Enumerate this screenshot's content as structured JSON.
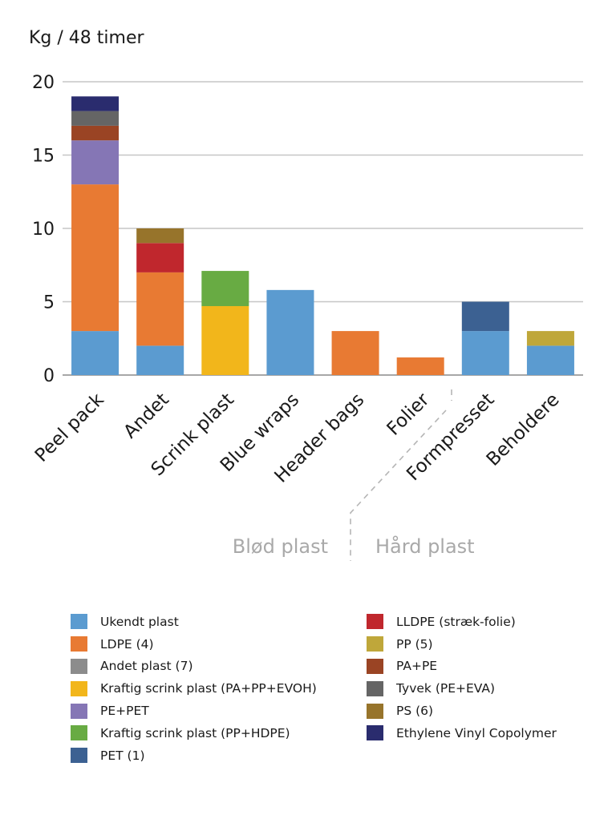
{
  "chart_data": {
    "type": "bar",
    "stacked": true,
    "ylabel": "Kg / 48 timer",
    "ylim": [
      0,
      20
    ],
    "yticks": [
      0,
      5,
      10,
      15,
      20
    ],
    "grid": true,
    "categories": [
      "Peel pack",
      "Andet",
      "Scrink plast",
      "Blue wraps",
      "Header bags",
      "Folier",
      "Formpresset",
      "Beholdere"
    ],
    "groups": [
      {
        "label": "Blød plast",
        "categories": [
          "Peel pack",
          "Andet",
          "Scrink plast",
          "Blue wraps",
          "Header bags",
          "Folier"
        ]
      },
      {
        "label": "Hård plast",
        "categories": [
          "Formpresset",
          "Beholdere"
        ]
      }
    ],
    "series": [
      {
        "name": "Ukendt plast",
        "color": "#5b9bd0",
        "values": [
          3,
          2,
          0,
          5.8,
          0,
          0,
          3,
          2
        ]
      },
      {
        "name": "LDPE (4)",
        "color": "#e87a33",
        "values": [
          10,
          5,
          0,
          0,
          3,
          1.2,
          0,
          0
        ]
      },
      {
        "name": "Andet plast (7)",
        "color": "#8c8c8c",
        "values": [
          0,
          0,
          0,
          0,
          0,
          0,
          0,
          0
        ]
      },
      {
        "name": "Kraftig scrink plast (PA+PP+EVOH)",
        "color": "#f2b61b",
        "values": [
          0,
          0,
          4.7,
          0,
          0,
          0,
          0,
          0
        ]
      },
      {
        "name": "PE+PET",
        "color": "#8576b5",
        "values": [
          3,
          0,
          0,
          0,
          0,
          0,
          0,
          0
        ]
      },
      {
        "name": "Kraftig scrink plast (PP+HDPE)",
        "color": "#68ab43",
        "values": [
          0,
          0,
          2.4,
          0,
          0,
          0,
          0,
          0
        ]
      },
      {
        "name": "PET (1)",
        "color": "#3c6192",
        "values": [
          0,
          0,
          0,
          0,
          0,
          0,
          2,
          0
        ]
      },
      {
        "name": "LLDPE (stræk-folie)",
        "color": "#c0272d",
        "values": [
          0,
          2,
          0,
          0,
          0,
          0,
          0,
          0
        ]
      },
      {
        "name": "PP (5)",
        "color": "#bfa73a",
        "values": [
          0,
          0,
          0,
          0,
          0,
          0,
          0,
          1
        ]
      },
      {
        "name": "PA+PE",
        "color": "#9a4424",
        "values": [
          1,
          0,
          0,
          0,
          0,
          0,
          0,
          0
        ]
      },
      {
        "name": "Tyvek (PE+EVA)",
        "color": "#656565",
        "values": [
          1,
          0,
          0,
          0,
          0,
          0,
          0,
          0
        ]
      },
      {
        "name": "PS (6)",
        "color": "#97742b",
        "values": [
          0,
          1,
          0,
          0,
          0,
          0,
          0,
          0
        ]
      },
      {
        "name": "Ethylene Vinyl Copolymer",
        "color": "#2a2c6e",
        "values": [
          1,
          0,
          0,
          0,
          0,
          0,
          0,
          0
        ]
      }
    ],
    "legend": {
      "placement": "bottom",
      "columns": [
        [
          "Ukendt plast",
          "LDPE (4)",
          "Andet plast (7)",
          "Kraftig scrink plast (PA+PP+EVOH)",
          "PE+PET",
          "Kraftig scrink plast (PP+HDPE)",
          "PET (1)"
        ],
        [
          "LLDPE (stræk-folie)",
          "PP (5)",
          "PA+PE",
          "Tyvek (PE+EVA)",
          "PS (6)",
          "Ethylene Vinyl Copolymer"
        ]
      ]
    }
  }
}
